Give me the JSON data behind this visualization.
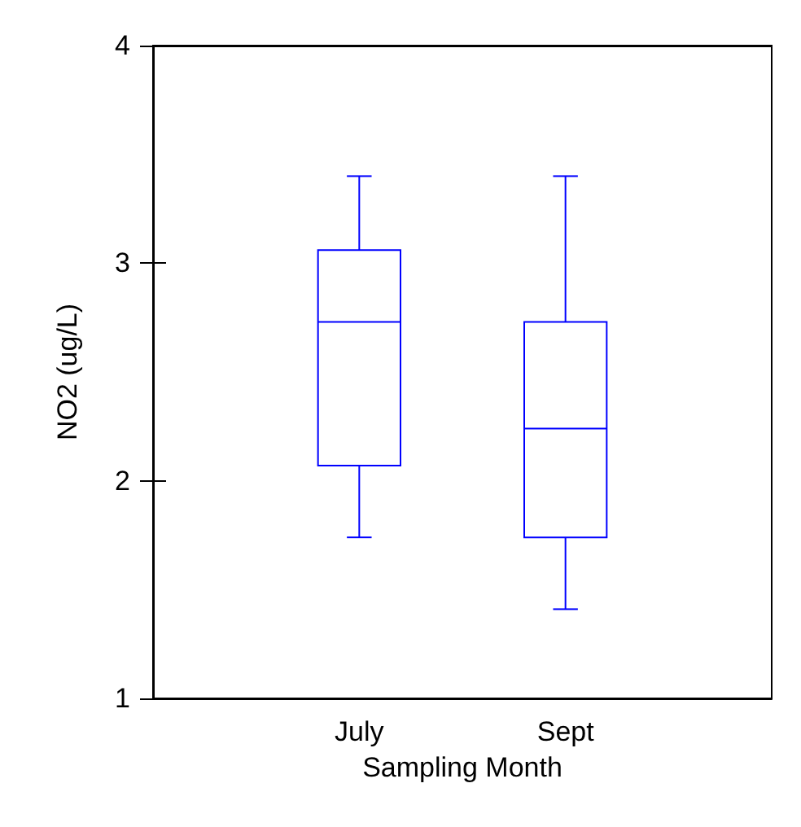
{
  "chart_data": {
    "type": "box",
    "xlabel": "Sampling Month",
    "ylabel": "NO2 (ug/L)",
    "categories": [
      "July",
      "Sept"
    ],
    "color": "#0000ff",
    "ylim": [
      1,
      4
    ],
    "yticks": [
      1,
      2,
      3,
      4
    ],
    "grid": false,
    "boxes": [
      {
        "low": 1.74,
        "q1": 2.07,
        "median": 2.73,
        "q3": 3.06,
        "high": 3.4
      },
      {
        "low": 1.41,
        "q1": 1.74,
        "median": 2.24,
        "q3": 2.73,
        "high": 3.4
      }
    ]
  }
}
